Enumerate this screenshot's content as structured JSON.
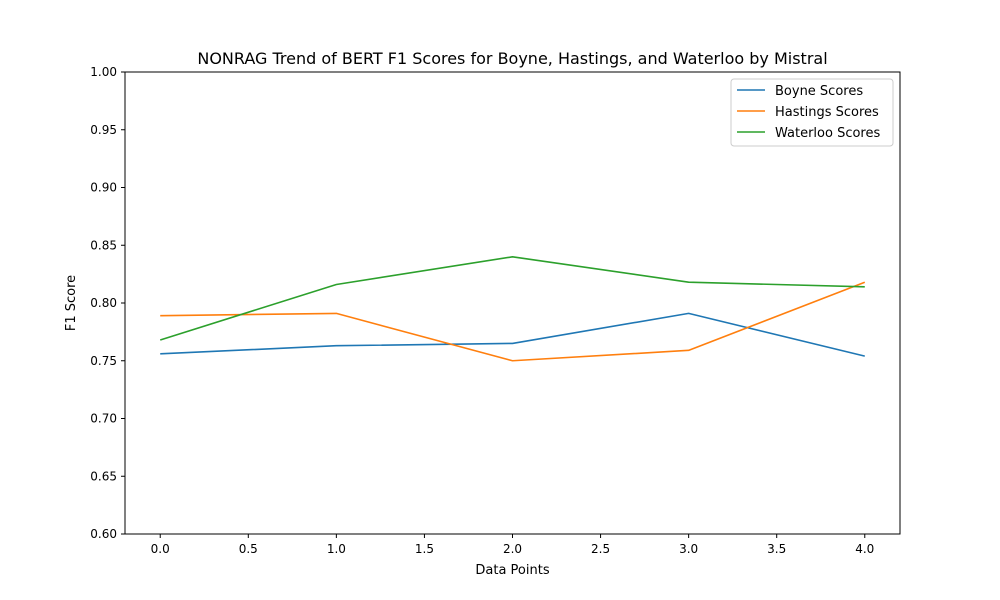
{
  "chart_data": {
    "type": "line",
    "title": "NONRAG Trend of BERT F1 Scores for Boyne, Hastings, and Waterloo by Mistral",
    "xlabel": "Data Points",
    "ylabel": "F1 Score",
    "xlim": [
      -0.2,
      4.2
    ],
    "ylim": [
      0.6,
      1.0
    ],
    "x_ticks": [
      "0.0",
      "0.5",
      "1.0",
      "1.5",
      "2.0",
      "2.5",
      "3.0",
      "3.5",
      "4.0"
    ],
    "y_ticks": [
      "0.60",
      "0.65",
      "0.70",
      "0.75",
      "0.80",
      "0.85",
      "0.90",
      "0.95",
      "1.00"
    ],
    "x": [
      0,
      1,
      2,
      3,
      4
    ],
    "grid": false,
    "legend_position": "top-right",
    "series": [
      {
        "name": "Boyne Scores",
        "color": "#1f77b4",
        "values": [
          0.756,
          0.763,
          0.765,
          0.791,
          0.754
        ]
      },
      {
        "name": "Hastings Scores",
        "color": "#ff7f0e",
        "values": [
          0.789,
          0.791,
          0.75,
          0.759,
          0.818
        ]
      },
      {
        "name": "Waterloo Scores",
        "color": "#2ca02c",
        "values": [
          0.768,
          0.816,
          0.84,
          0.818,
          0.814
        ]
      }
    ]
  }
}
